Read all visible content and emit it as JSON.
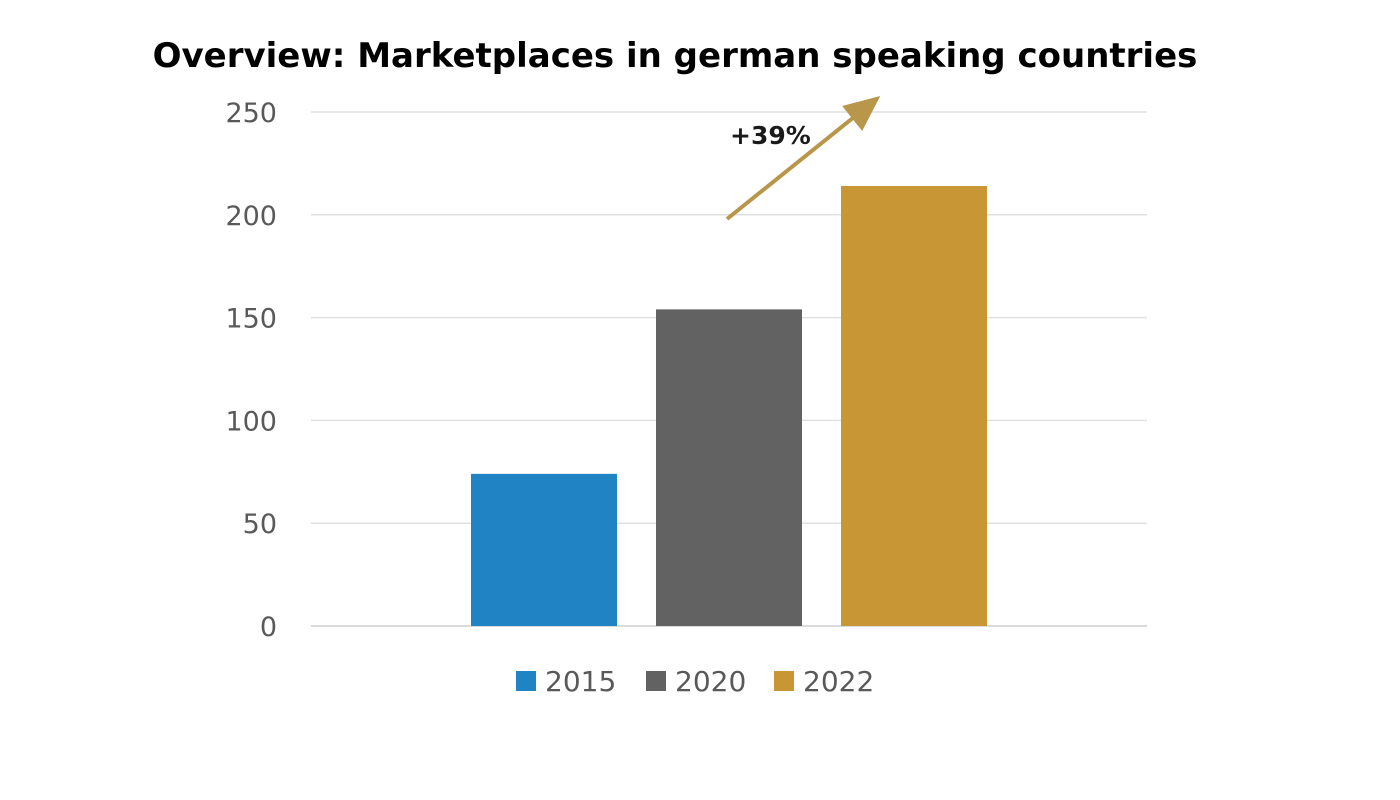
{
  "chart_data": {
    "type": "bar",
    "title": "Overview: Marketplaces in german speaking countries",
    "xlabel": "",
    "ylabel": "",
    "ylim": [
      0,
      250
    ],
    "yticks": [
      0,
      50,
      100,
      150,
      200,
      250
    ],
    "grid": true,
    "legend_position": "bottom",
    "series": [
      {
        "name": "2015",
        "value": 74,
        "color": "#1f83c4"
      },
      {
        "name": "2020",
        "value": 154,
        "color": "#626262"
      },
      {
        "name": "2022",
        "value": 214,
        "color": "#c99636"
      }
    ],
    "annotation": {
      "text": "+39%",
      "arrow_color": "#b8964a"
    }
  }
}
